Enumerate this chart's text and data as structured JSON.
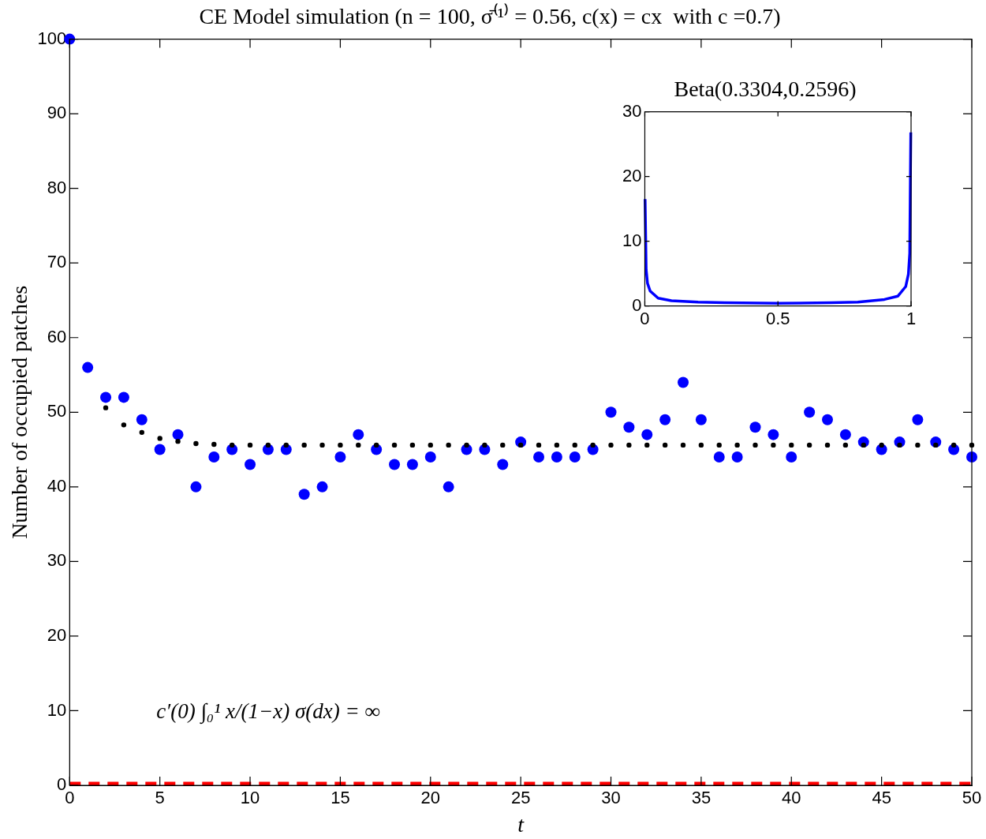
{
  "chart_data": [
    {
      "type": "scatter",
      "title": "CE Model simulation (n = 100, σ̄⁽¹⁾ = 0.56, c(x) = cx  with c =0.7)",
      "xlabel": "t",
      "ylabel": "Number of occupied patches",
      "xlim": [
        0,
        50
      ],
      "ylim": [
        0,
        100
      ],
      "xticks": [
        0,
        5,
        10,
        15,
        20,
        25,
        30,
        35,
        40,
        45,
        50
      ],
      "yticks": [
        0,
        10,
        20,
        30,
        40,
        50,
        60,
        70,
        80,
        90,
        100
      ],
      "grid": false,
      "legend": false,
      "annotations": [
        "c′(0) ∫₀¹ x/(1−x) σ(dx) = ∞"
      ],
      "ref_lines": [
        {
          "axis": "y",
          "value": 0,
          "color": "#ff0000",
          "line_style": "dashed"
        }
      ],
      "series": [
        {
          "color": "#000000",
          "marker": "circle",
          "x": [
            2,
            3,
            4,
            5,
            6,
            7,
            8,
            9,
            10,
            11,
            12,
            13,
            14,
            15,
            16,
            17,
            18,
            19,
            20,
            21,
            22,
            23,
            24,
            25,
            26,
            27,
            28,
            29,
            30,
            31,
            32,
            33,
            34,
            35,
            36,
            37,
            38,
            39,
            40,
            41,
            42,
            43,
            44,
            45,
            46,
            47,
            48,
            49,
            50
          ],
          "values": [
            50.6,
            48.3,
            47.3,
            46.5,
            46.1,
            45.8,
            45.7,
            45.6,
            45.6,
            45.6,
            45.6,
            45.6,
            45.6,
            45.6,
            45.6,
            45.6,
            45.6,
            45.6,
            45.6,
            45.6,
            45.6,
            45.6,
            45.6,
            45.6,
            45.6,
            45.6,
            45.6,
            45.6,
            45.6,
            45.6,
            45.6,
            45.6,
            45.6,
            45.6,
            45.6,
            45.6,
            45.6,
            45.6,
            45.6,
            45.6,
            45.6,
            45.6,
            45.6,
            45.6,
            45.6,
            45.6,
            45.6,
            45.6,
            45.6
          ]
        },
        {
          "color": "#0000ff",
          "marker": "circle",
          "x": [
            0,
            1,
            2,
            3,
            4,
            5,
            6,
            7,
            8,
            9,
            10,
            11,
            12,
            13,
            14,
            15,
            16,
            17,
            18,
            19,
            20,
            21,
            22,
            23,
            24,
            25,
            26,
            27,
            28,
            29,
            30,
            31,
            32,
            33,
            34,
            35,
            36,
            37,
            38,
            39,
            40,
            41,
            42,
            43,
            44,
            45,
            46,
            47,
            48,
            49,
            50
          ],
          "values": [
            100,
            56,
            52,
            52,
            49,
            45,
            47,
            40,
            44,
            45,
            43,
            45,
            45,
            39,
            40,
            44,
            47,
            45,
            43,
            43,
            44,
            40,
            45,
            45,
            43,
            46,
            44,
            44,
            44,
            45,
            50,
            48,
            47,
            49,
            54,
            49,
            44,
            44,
            48,
            47,
            44,
            50,
            49,
            47,
            46,
            45,
            46,
            49,
            46,
            45,
            44
          ]
        }
      ]
    },
    {
      "type": "line",
      "title": "Beta(0.3304,0.2596)",
      "xlim": [
        0,
        1
      ],
      "ylim": [
        0,
        30
      ],
      "xticks": [
        0,
        0.5,
        1
      ],
      "yticks": [
        0,
        10,
        20,
        30
      ],
      "grid": false,
      "legend": false,
      "series": [
        {
          "color": "#0000ff",
          "marker": "none",
          "line_style": "solid",
          "x": [
            0.001,
            0.005,
            0.01,
            0.02,
            0.05,
            0.1,
            0.2,
            0.3,
            0.5,
            0.7,
            0.8,
            0.9,
            0.95,
            0.98,
            0.99,
            0.995,
            0.999
          ],
          "values": [
            16.5,
            5.6,
            3.5,
            2.3,
            1.2,
            0.8,
            0.6,
            0.5,
            0.4,
            0.5,
            0.6,
            1,
            1.5,
            3,
            4.9,
            8.1,
            26.8
          ]
        }
      ]
    }
  ]
}
